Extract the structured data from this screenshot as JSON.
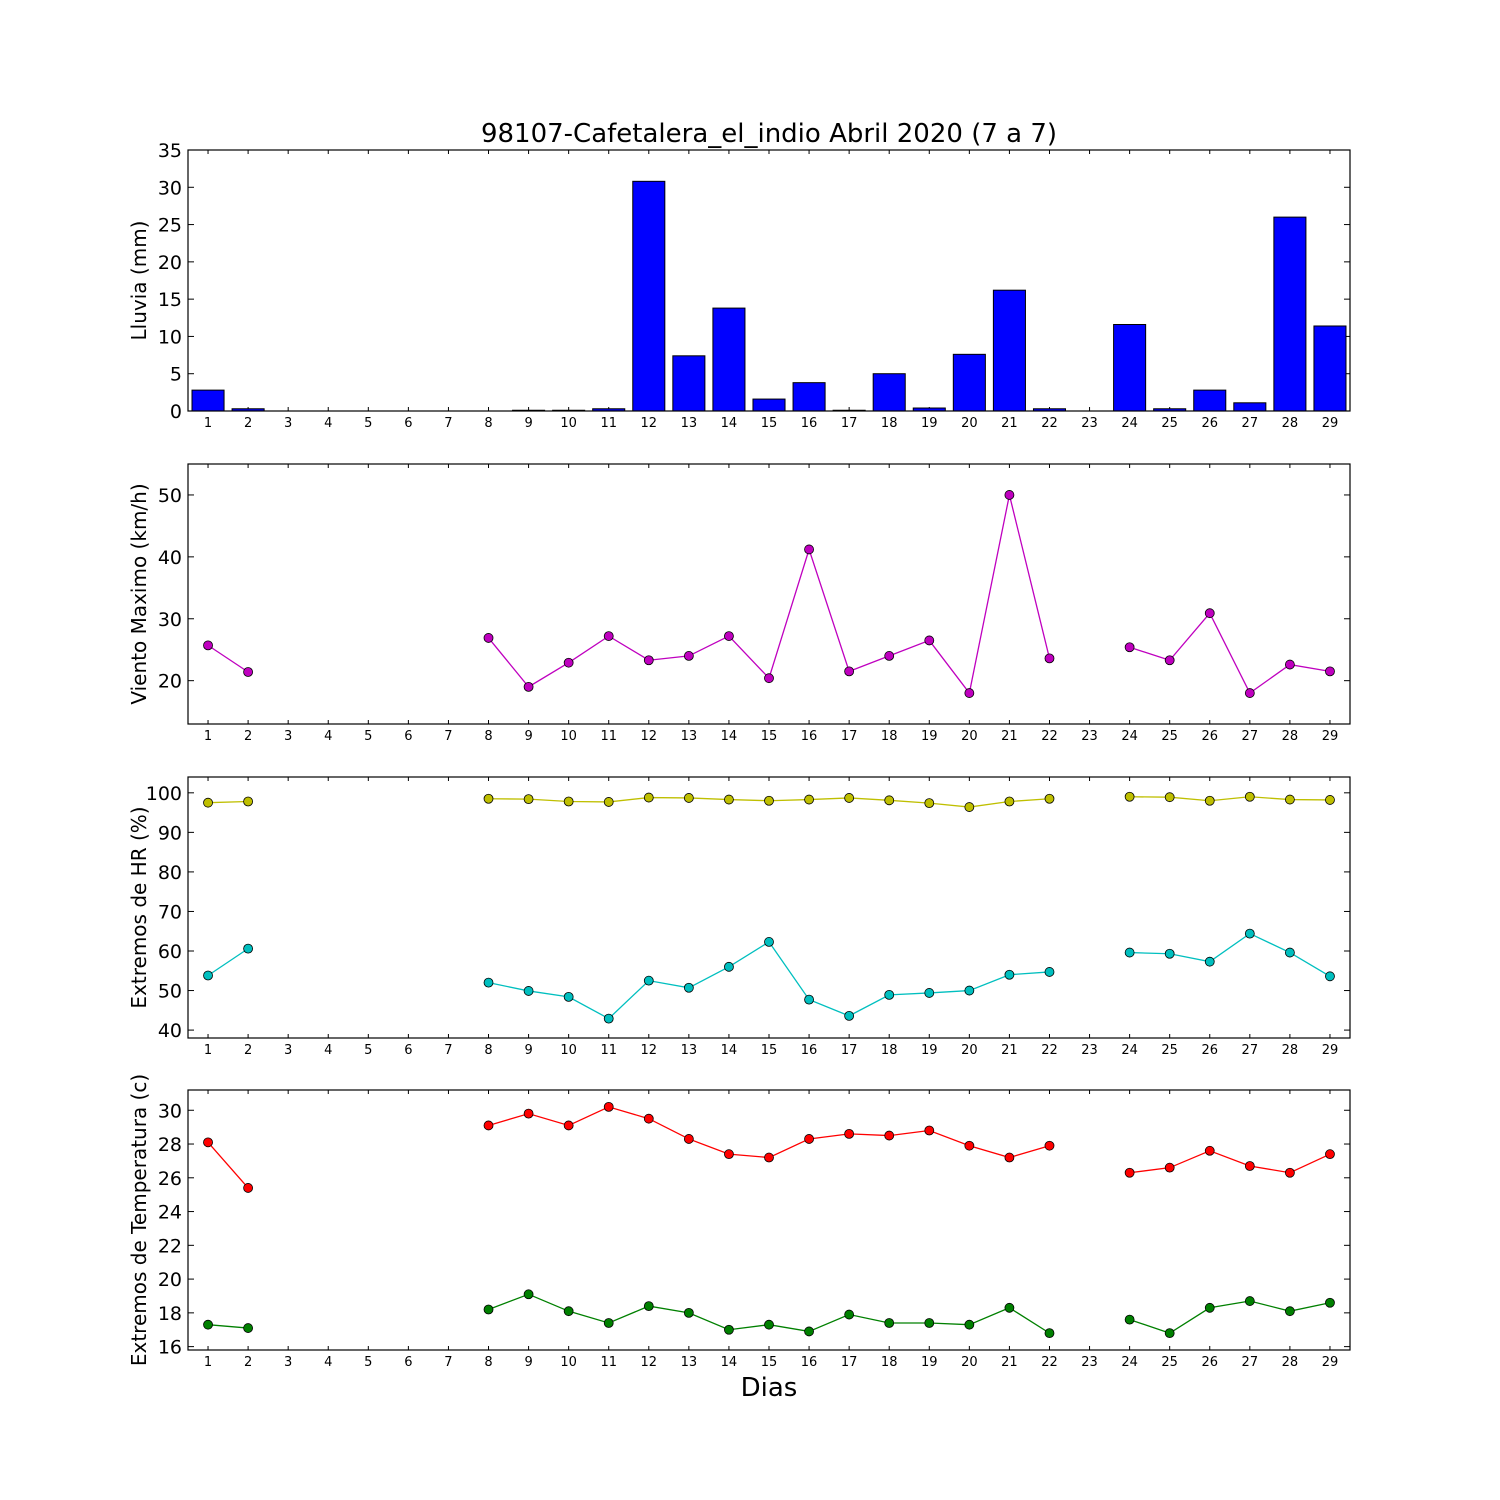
{
  "title": "98107-Cafetalera_el_indio Abril 2020  (7 a 7)",
  "xlabel": "Dias",
  "colors": {
    "rain_bar": "#0000ff",
    "wind": "#bf00bf",
    "hr_max": "#bfbf00",
    "hr_min": "#00bfbf",
    "temp_max": "#ff0000",
    "temp_min": "#008000"
  },
  "chart_data": [
    {
      "type": "bar",
      "id": "rain",
      "ylabel": "Lluvia (mm)",
      "ylim": [
        0,
        35
      ],
      "yticks": [
        0,
        5,
        10,
        15,
        20,
        25,
        30,
        35
      ],
      "xlim": [
        0.5,
        29.5
      ],
      "categories": [
        1,
        2,
        3,
        4,
        5,
        6,
        7,
        8,
        9,
        10,
        11,
        12,
        13,
        14,
        15,
        16,
        17,
        18,
        19,
        20,
        21,
        22,
        23,
        24,
        25,
        26,
        27,
        28,
        29
      ],
      "series": [
        {
          "values": [
            2.8,
            0.3,
            0,
            0,
            0,
            0,
            0,
            0,
            0.1,
            0.1,
            0.3,
            30.8,
            7.4,
            13.8,
            1.6,
            3.8,
            0.1,
            5.0,
            0.4,
            7.6,
            16.2,
            0.3,
            0,
            11.6,
            0.3,
            2.8,
            1.1,
            26.0,
            11.4
          ]
        }
      ]
    },
    {
      "type": "line",
      "id": "wind",
      "ylabel": "Viento Maximo (km/h)",
      "ylim": [
        13,
        55
      ],
      "yticks": [
        20,
        30,
        40,
        50
      ],
      "xlim": [
        0.5,
        29.5
      ],
      "x": [
        1,
        2,
        3,
        4,
        5,
        6,
        7,
        8,
        9,
        10,
        11,
        12,
        13,
        14,
        15,
        16,
        17,
        18,
        19,
        20,
        21,
        22,
        23,
        24,
        25,
        26,
        27,
        28,
        29
      ],
      "series": [
        {
          "values": [
            25.7,
            21.4,
            null,
            null,
            null,
            null,
            null,
            26.9,
            19.0,
            22.9,
            27.2,
            23.3,
            24.0,
            27.2,
            20.4,
            41.2,
            21.5,
            24.0,
            26.5,
            18.0,
            50.0,
            23.6,
            null,
            25.4,
            23.3,
            30.9,
            18.0,
            22.6,
            21.5
          ]
        }
      ]
    },
    {
      "type": "line",
      "id": "humidity",
      "ylabel": "Extremos de HR (%)",
      "ylim": [
        38,
        104
      ],
      "yticks": [
        40,
        50,
        60,
        70,
        80,
        90,
        100
      ],
      "xlim": [
        0.5,
        29.5
      ],
      "x": [
        1,
        2,
        3,
        4,
        5,
        6,
        7,
        8,
        9,
        10,
        11,
        12,
        13,
        14,
        15,
        16,
        17,
        18,
        19,
        20,
        21,
        22,
        23,
        24,
        25,
        26,
        27,
        28,
        29
      ],
      "series": [
        {
          "values": [
            97.5,
            97.8,
            null,
            null,
            null,
            null,
            null,
            98.5,
            98.4,
            97.8,
            97.7,
            98.8,
            98.7,
            98.3,
            98.0,
            98.3,
            98.7,
            98.1,
            97.4,
            96.4,
            97.8,
            98.5,
            null,
            99.0,
            98.9,
            98.0,
            99.0,
            98.3,
            98.2
          ]
        },
        {
          "values": [
            53.8,
            60.6,
            null,
            null,
            null,
            null,
            null,
            52.0,
            49.9,
            48.4,
            42.9,
            52.5,
            50.7,
            56.0,
            62.3,
            47.7,
            43.6,
            48.9,
            49.4,
            50.0,
            54.0,
            54.7,
            null,
            59.6,
            59.3,
            57.3,
            64.4,
            59.6,
            53.6
          ]
        }
      ]
    },
    {
      "type": "line",
      "id": "temperature",
      "ylabel": "Extremos de Temperatura (c)",
      "ylim": [
        15.8,
        31.2
      ],
      "yticks": [
        16,
        18,
        20,
        22,
        24,
        26,
        28,
        30
      ],
      "xlim": [
        0.5,
        29.5
      ],
      "x": [
        1,
        2,
        3,
        4,
        5,
        6,
        7,
        8,
        9,
        10,
        11,
        12,
        13,
        14,
        15,
        16,
        17,
        18,
        19,
        20,
        21,
        22,
        23,
        24,
        25,
        26,
        27,
        28,
        29
      ],
      "series": [
        {
          "values": [
            28.1,
            25.4,
            null,
            null,
            null,
            null,
            null,
            29.1,
            29.8,
            29.1,
            30.2,
            29.5,
            28.3,
            27.4,
            27.2,
            28.3,
            28.6,
            28.5,
            28.8,
            27.9,
            27.2,
            27.9,
            null,
            26.3,
            26.6,
            27.6,
            26.7,
            26.3,
            27.4
          ]
        },
        {
          "values": [
            17.3,
            17.1,
            null,
            null,
            null,
            null,
            null,
            18.2,
            19.1,
            18.1,
            17.4,
            18.4,
            18.0,
            17.0,
            17.3,
            16.9,
            17.9,
            17.4,
            17.4,
            17.3,
            18.3,
            16.8,
            null,
            17.6,
            16.8,
            18.3,
            18.7,
            18.1,
            18.6
          ]
        }
      ]
    }
  ]
}
